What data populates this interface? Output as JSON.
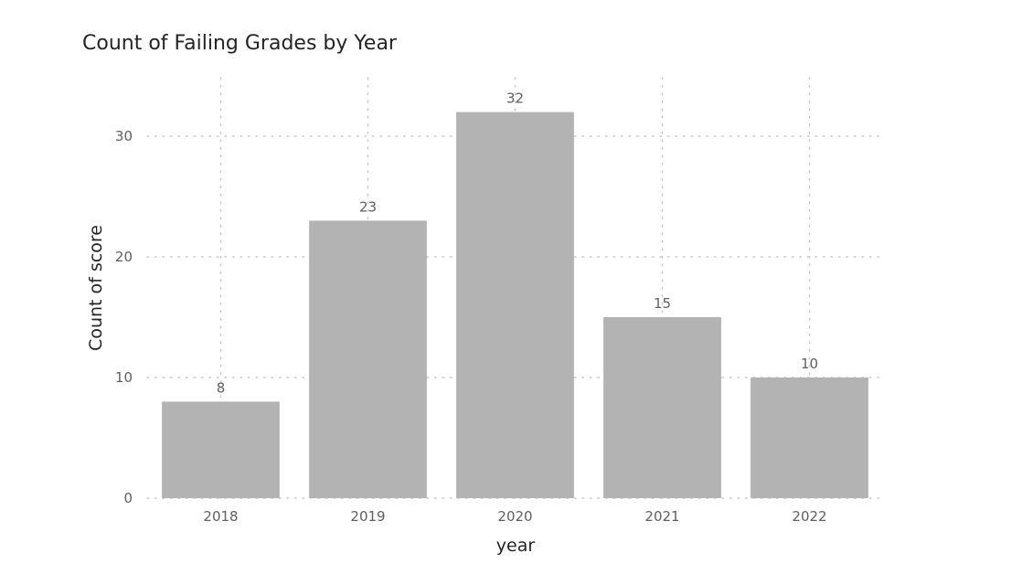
{
  "chart_data": {
    "type": "bar",
    "title": "Count of Failing Grades by Year",
    "xlabel": "year",
    "ylabel": "Count of score",
    "categories": [
      "2018",
      "2019",
      "2020",
      "2021",
      "2022"
    ],
    "values": [
      8,
      23,
      32,
      15,
      10
    ],
    "data_labels": [
      "8",
      "23",
      "32",
      "15",
      "10"
    ],
    "ylim": [
      0,
      32
    ],
    "yticks": [
      0,
      10,
      20,
      30
    ],
    "ytick_labels": [
      "0",
      "10",
      "20",
      "30"
    ],
    "grid": true,
    "bar_color": "#b3b3b3",
    "legend": "none"
  }
}
